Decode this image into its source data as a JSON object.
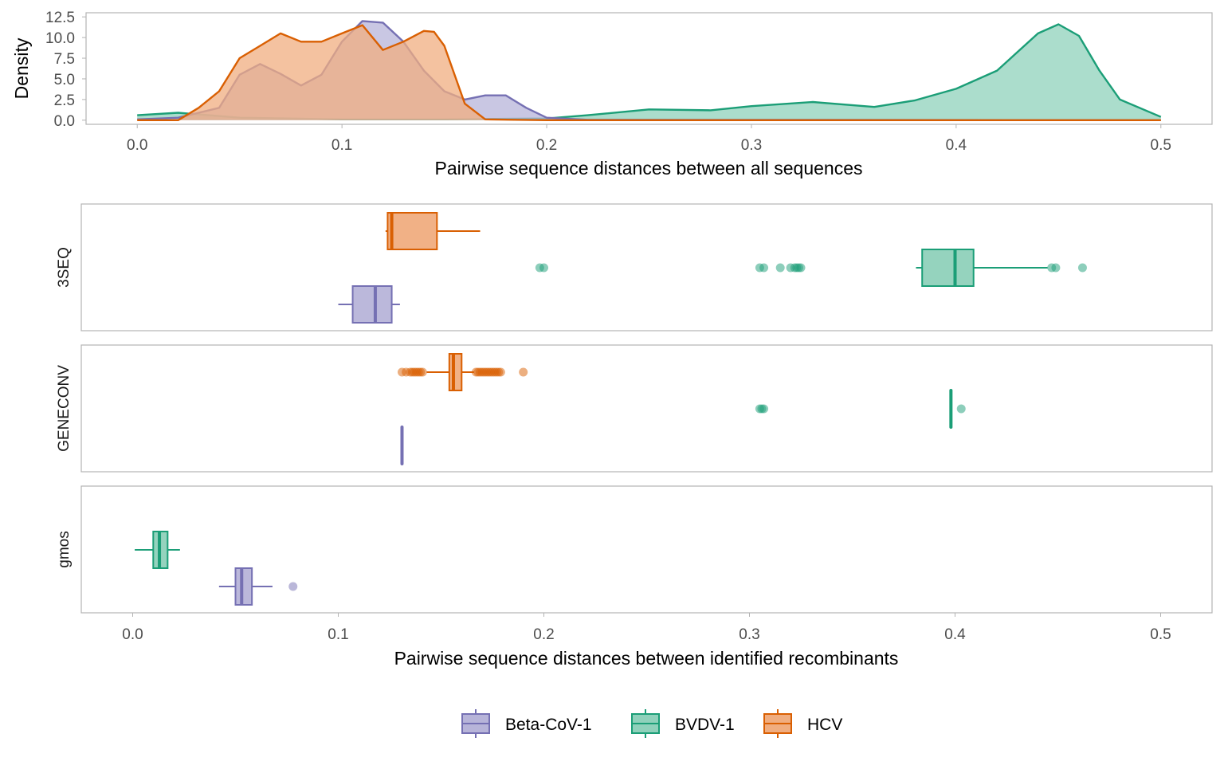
{
  "colors": {
    "Beta-CoV-1": "#7570b3",
    "BVDV-1": "#1b9e77",
    "HCV": "#d95f02",
    "Beta-CoV-1_fill": "#b7b4d9",
    "BVDV-1_fill": "#8fd1bb",
    "HCV_fill": "#f0ad80"
  },
  "chart_data": [
    {
      "type": "area",
      "subtype": "density",
      "xlabel": "Pairwise sequence distances between all sequences",
      "ylabel": "Density",
      "xlim": [
        -0.025,
        0.525
      ],
      "ylim": [
        -0.5,
        13.0
      ],
      "x_ticks": [
        0.0,
        0.1,
        0.2,
        0.3,
        0.4,
        0.5
      ],
      "x_tick_labels": [
        "0.0",
        "0.1",
        "0.2",
        "0.3",
        "0.4",
        "0.5"
      ],
      "y_ticks": [
        0.0,
        2.5,
        5.0,
        7.5,
        10.0,
        12.5
      ],
      "y_tick_labels": [
        "0.0",
        "2.5",
        "5.0",
        "7.5",
        "10.0",
        "12.5"
      ],
      "grid": false,
      "series": [
        {
          "name": "BVDV-1",
          "x": [
            0.0,
            0.02,
            0.05,
            0.1,
            0.15,
            0.2,
            0.22,
            0.25,
            0.28,
            0.3,
            0.33,
            0.36,
            0.38,
            0.4,
            0.42,
            0.44,
            0.45,
            0.46,
            0.47,
            0.48,
            0.5
          ],
          "y": [
            0.6,
            0.9,
            0.3,
            0.1,
            0.1,
            0.2,
            0.6,
            1.3,
            1.2,
            1.7,
            2.2,
            1.6,
            2.4,
            3.8,
            6.0,
            10.5,
            11.6,
            10.2,
            6.0,
            2.5,
            0.4
          ]
        },
        {
          "name": "Beta-CoV-1",
          "x": [
            0.0,
            0.02,
            0.04,
            0.05,
            0.06,
            0.07,
            0.08,
            0.09,
            0.1,
            0.11,
            0.12,
            0.13,
            0.14,
            0.15,
            0.16,
            0.17,
            0.18,
            0.19,
            0.2,
            0.22,
            0.5
          ],
          "y": [
            0.1,
            0.3,
            1.5,
            5.5,
            6.8,
            5.6,
            4.2,
            5.5,
            9.5,
            12.0,
            11.8,
            9.5,
            6.0,
            3.5,
            2.5,
            3.0,
            3.0,
            1.5,
            0.3,
            0.05,
            0.0
          ]
        },
        {
          "name": "HCV",
          "x": [
            0.0,
            0.02,
            0.03,
            0.04,
            0.05,
            0.06,
            0.07,
            0.08,
            0.09,
            0.1,
            0.11,
            0.12,
            0.13,
            0.14,
            0.145,
            0.15,
            0.16,
            0.17,
            0.2,
            0.5
          ],
          "y": [
            0.0,
            0.0,
            1.5,
            3.5,
            7.5,
            9.0,
            10.5,
            9.5,
            9.5,
            10.5,
            11.5,
            8.5,
            9.5,
            10.8,
            10.7,
            9.0,
            2.0,
            0.1,
            0.0,
            0.0
          ]
        }
      ]
    },
    {
      "type": "boxplot",
      "xlabel": "Pairwise sequence distances between identified recombinants",
      "xlim": [
        -0.025,
        0.525
      ],
      "x_ticks": [
        0.0,
        0.1,
        0.2,
        0.3,
        0.4,
        0.5
      ],
      "x_tick_labels": [
        "0.0",
        "0.1",
        "0.2",
        "0.3",
        "0.4",
        "0.5"
      ],
      "grid": false,
      "legend": {
        "position": "bottom",
        "entries": [
          "Beta-CoV-1",
          "BVDV-1",
          "HCV"
        ]
      },
      "panels": [
        {
          "name": "3SEQ",
          "boxes": [
            {
              "group": "HCV",
              "lower_whisker": 0.123,
              "q1": 0.124,
              "median": 0.126,
              "q3": 0.148,
              "upper_whisker": 0.169,
              "outliers": []
            },
            {
              "group": "BVDV-1",
              "lower_whisker": 0.381,
              "q1": 0.384,
              "median": 0.4,
              "q3": 0.409,
              "upper_whisker": 0.445,
              "outliers": [
                0.198,
                0.2,
                0.305,
                0.307,
                0.315,
                0.32,
                0.322,
                0.323,
                0.324,
                0.325,
                0.447,
                0.449,
                0.462
              ]
            },
            {
              "group": "Beta-CoV-1",
              "lower_whisker": 0.1,
              "q1": 0.107,
              "median": 0.118,
              "q3": 0.126,
              "upper_whisker": 0.13,
              "outliers": []
            }
          ]
        },
        {
          "name": "GENECONV",
          "boxes": [
            {
              "group": "HCV",
              "lower_whisker": 0.143,
              "q1": 0.154,
              "median": 0.156,
              "q3": 0.16,
              "upper_whisker": 0.166,
              "outliers": [
                0.131,
                0.133,
                0.135,
                0.136,
                0.137,
                0.138,
                0.139,
                0.14,
                0.141,
                0.167,
                0.168,
                0.169,
                0.17,
                0.171,
                0.172,
                0.173,
                0.174,
                0.175,
                0.176,
                0.177,
                0.178,
                0.179,
                0.19
              ]
            },
            {
              "group": "BVDV-1",
              "lower_whisker": 0.398,
              "q1": 0.398,
              "median": 0.398,
              "q3": 0.398,
              "upper_whisker": 0.398,
              "outliers": [
                0.305,
                0.306,
                0.307,
                0.403
              ]
            },
            {
              "group": "Beta-CoV-1",
              "lower_whisker": 0.131,
              "q1": 0.131,
              "median": 0.131,
              "q3": 0.131,
              "upper_whisker": 0.131,
              "outliers": []
            }
          ]
        },
        {
          "name": "gmos",
          "boxes": [
            {
              "group": "HCV",
              "absent": true
            },
            {
              "group": "BVDV-1",
              "lower_whisker": 0.001,
              "q1": 0.01,
              "median": 0.013,
              "q3": 0.017,
              "upper_whisker": 0.023,
              "outliers": []
            },
            {
              "group": "Beta-CoV-1",
              "lower_whisker": 0.042,
              "q1": 0.05,
              "median": 0.053,
              "q3": 0.058,
              "upper_whisker": 0.068,
              "outliers": [
                0.078
              ]
            }
          ]
        }
      ]
    }
  ]
}
